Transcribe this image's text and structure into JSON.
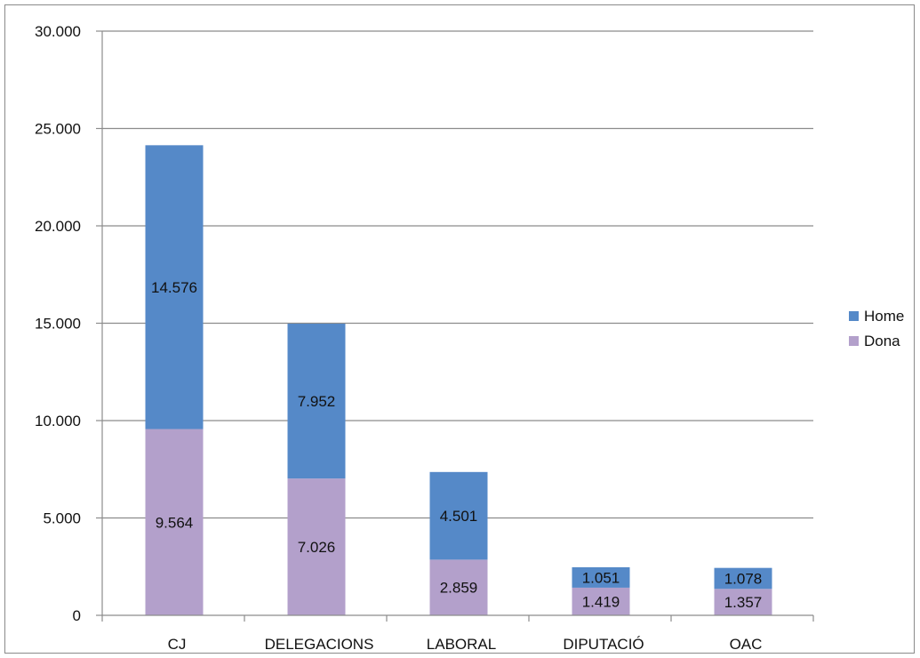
{
  "chart_data": {
    "type": "bar",
    "stacked": true,
    "categories": [
      "CJ",
      "DELEGACIONS",
      "LABORAL",
      "DIPUTACIÓ",
      "OAC"
    ],
    "series": [
      {
        "name": "Dona",
        "values": [
          9564,
          7026,
          2859,
          1419,
          1357
        ],
        "labels": [
          "9.564",
          "7.026",
          "2.859",
          "1.419",
          "1.357"
        ],
        "color": "#b3a0cb"
      },
      {
        "name": "Home",
        "values": [
          14576,
          7952,
          4501,
          1051,
          1078
        ],
        "labels": [
          "14.576",
          "7.952",
          "4.501",
          "1.051",
          "1.078"
        ],
        "color": "#5589c8"
      }
    ],
    "yticks": [
      "0",
      "5.000",
      "10.000",
      "15.000",
      "20.000",
      "25.000",
      "30.000"
    ],
    "ylim": [
      0,
      30000
    ],
    "grid": true,
    "legend": {
      "position": "right",
      "entries": [
        "Home",
        "Dona"
      ]
    },
    "title": "",
    "xlabel": "",
    "ylabel": ""
  }
}
